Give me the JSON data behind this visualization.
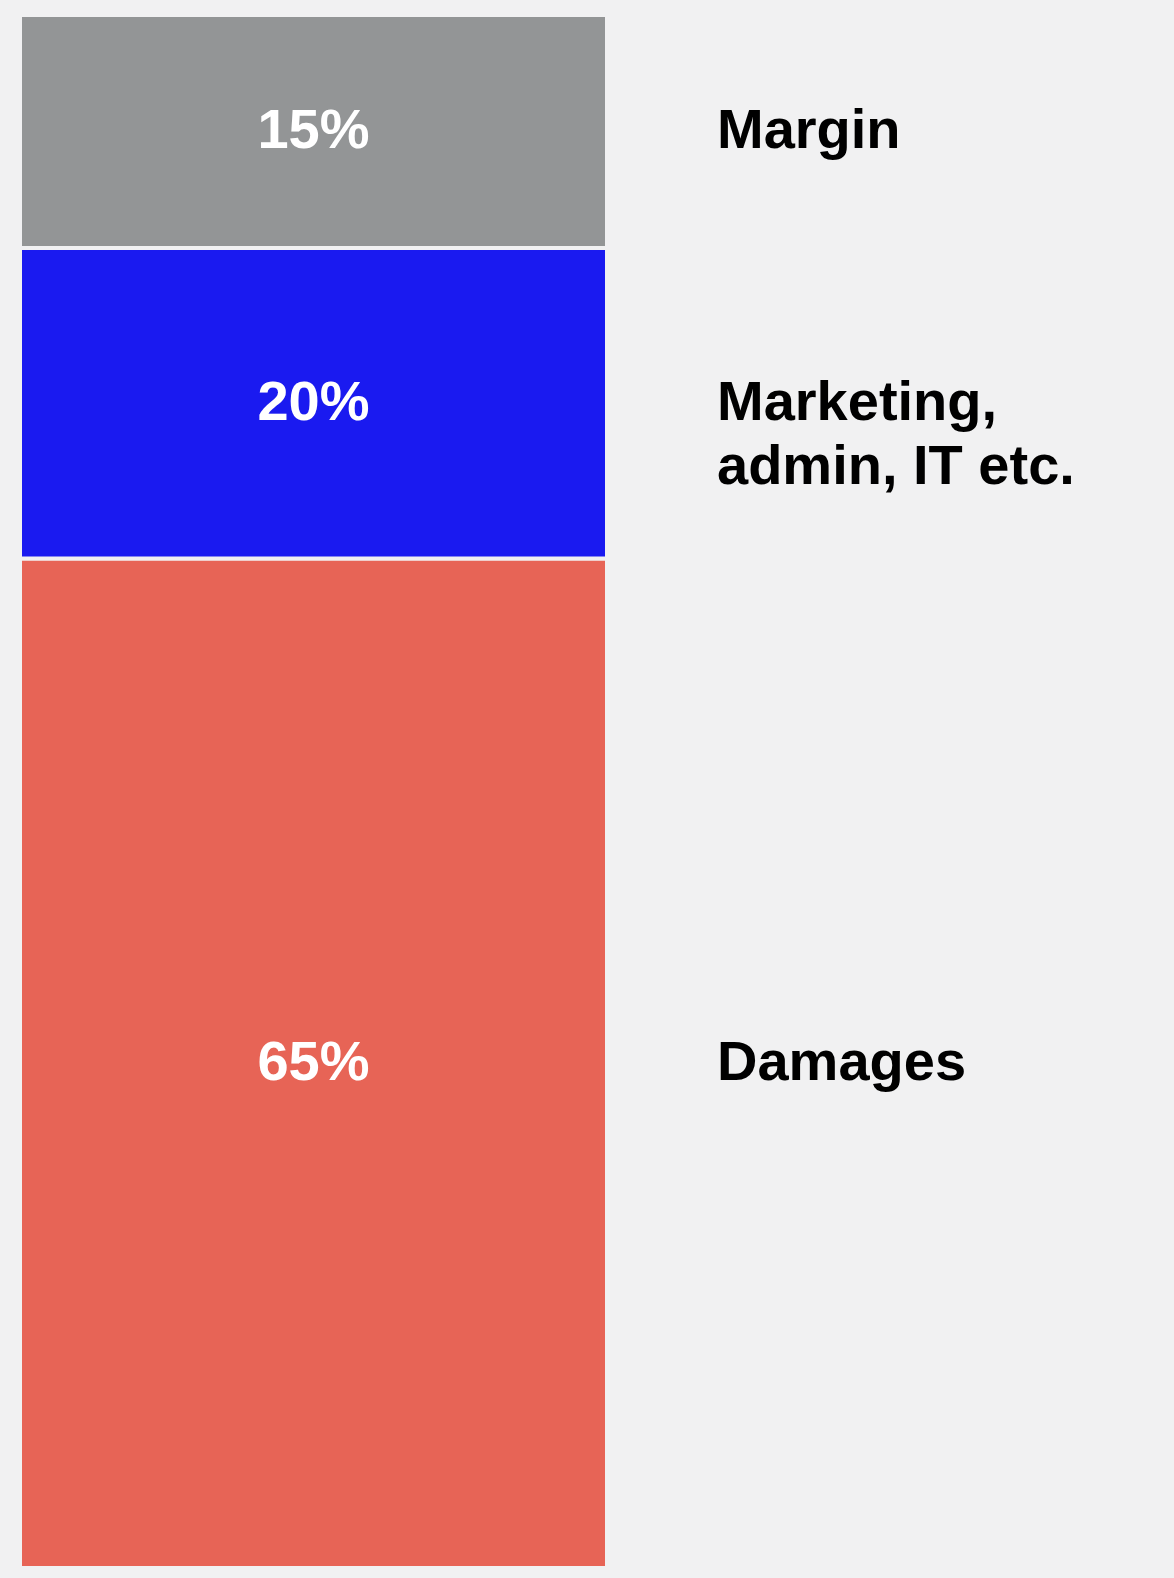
{
  "chart_data": {
    "type": "bar",
    "stacked": true,
    "categories": [
      null
    ],
    "series": [
      {
        "name": "Damages",
        "color": "#e76456",
        "values": [
          65
        ],
        "value_labels": [
          "65%"
        ]
      },
      {
        "name": "Marketing,\nadmin, IT etc.",
        "color": "#1a1af0",
        "values": [
          20
        ],
        "value_labels": [
          "20%"
        ]
      },
      {
        "name": "Margin",
        "color": "#939596",
        "values": [
          15
        ],
        "value_labels": [
          "15%"
        ]
      }
    ]
  }
}
